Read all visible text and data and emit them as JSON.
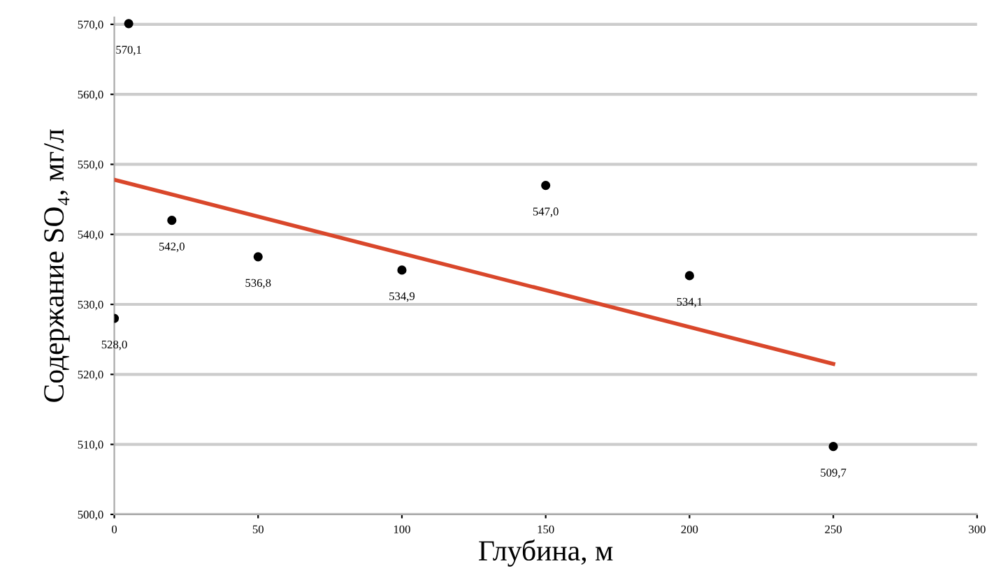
{
  "chart_data": {
    "type": "scatter",
    "xlabel": "Глубина, м",
    "ylabel": "Содержание SO₄, мг/л",
    "x": [
      5,
      20,
      50,
      100,
      150,
      200,
      250,
      0
    ],
    "values": [
      570.1,
      542.0,
      536.8,
      534.9,
      547.0,
      534.1,
      509.7,
      528.0
    ],
    "value_labels": [
      "570,1",
      "542,0",
      "536,8",
      "534,9",
      "547,0",
      "534,1",
      "509,7",
      "528,0"
    ],
    "color": "#000000",
    "marker": "circle",
    "series": [
      {
        "type": "line",
        "x": [
          0,
          250
        ],
        "values": [
          547.8,
          521.5
        ],
        "color": "#d9472b",
        "marker": "none"
      }
    ],
    "xlim": [
      0,
      300
    ],
    "xticks": [
      0,
      50,
      100,
      150,
      200,
      250,
      300
    ],
    "ylim": [
      500,
      571
    ],
    "yticks": [
      {
        "value": 500,
        "label": "500,0"
      },
      {
        "value": 510,
        "label": "510,0"
      },
      {
        "value": 520,
        "label": "520,0"
      },
      {
        "value": 530,
        "label": "530,0"
      },
      {
        "value": 540,
        "label": "540,0"
      },
      {
        "value": 550,
        "label": "550,0"
      },
      {
        "value": 560,
        "label": "560,0"
      },
      {
        "value": 570,
        "label": "570,0"
      }
    ],
    "grid": "y"
  }
}
